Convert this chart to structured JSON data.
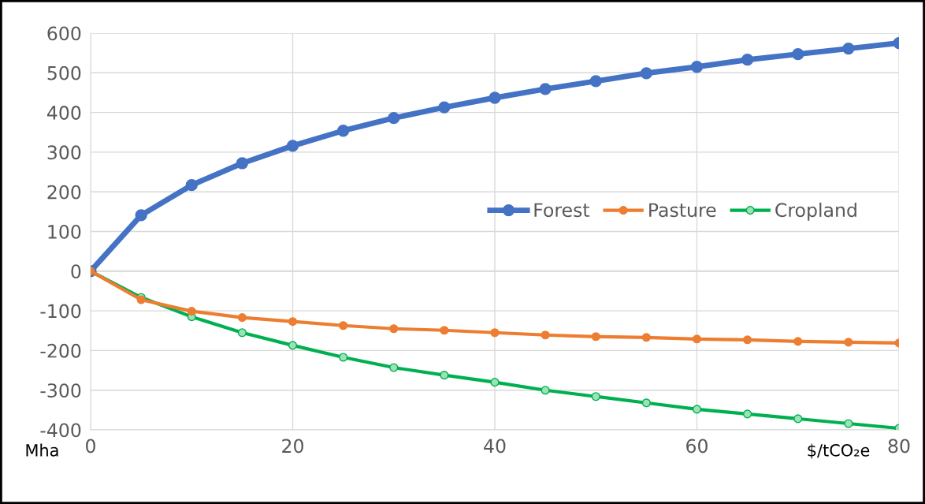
{
  "chart_data": {
    "type": "line",
    "xlabel": "$/tCO₂e",
    "ylabel": "Mha",
    "x": [
      0,
      5,
      10,
      15,
      20,
      25,
      30,
      35,
      40,
      45,
      50,
      55,
      60,
      65,
      70,
      75,
      80
    ],
    "series": [
      {
        "name": "Forest",
        "color": "#4472c4",
        "values": [
          0,
          141,
          217,
          272,
          316,
          354,
          386,
          413,
          437,
          459,
          479,
          499,
          515,
          533,
          547,
          561,
          575
        ]
      },
      {
        "name": "Pasture",
        "color": "#ed7d31",
        "values": [
          0,
          -72,
          -101,
          -117,
          -127,
          -137,
          -145,
          -149,
          -155,
          -161,
          -165,
          -167,
          -171,
          -173,
          -177,
          -179,
          -181
        ]
      },
      {
        "name": "Cropland",
        "color": "#00b050",
        "values": [
          0,
          -66,
          -115,
          -155,
          -187,
          -217,
          -243,
          -262,
          -280,
          -300,
          -316,
          -332,
          -348,
          -360,
          -372,
          -384,
          -396
        ]
      }
    ],
    "xlim": [
      0,
      80
    ],
    "xticks": [
      0,
      20,
      40,
      60,
      80
    ],
    "ylim": [
      -400,
      600
    ],
    "yticks": [
      -400,
      -300,
      -200,
      -100,
      0,
      100,
      200,
      300,
      400,
      500,
      600
    ],
    "grid": true,
    "legend": "right",
    "marker": "circle",
    "line_style": "solid"
  }
}
